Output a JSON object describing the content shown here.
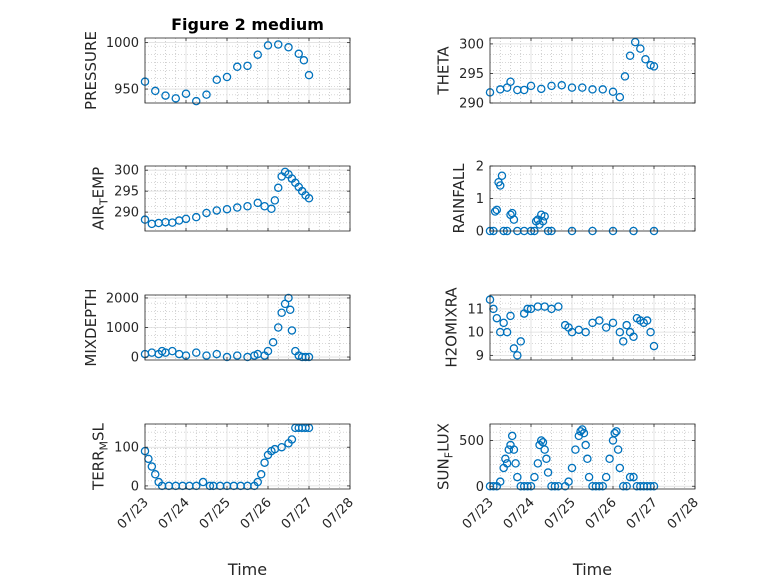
{
  "figure": {
    "title": "Figure 2 medium"
  },
  "colors": {
    "marker": "#0072BD",
    "axis": "#262626",
    "grid": "#b0b0b0",
    "background": "#ffffff"
  },
  "chart_data": [
    {
      "type": "scatter",
      "marker": "o",
      "grid": true,
      "grid_minor": true,
      "title": "Figure 2 medium",
      "ylabel": "PRESSURE",
      "xlabel": "",
      "xlim": [
        "07/23",
        "07/28"
      ],
      "ylim": [
        935,
        1005
      ],
      "xticks": [
        "07/23",
        "07/24",
        "07/25",
        "07/26",
        "07/27",
        "07/28"
      ],
      "show_xticklabels": false,
      "yticks": [
        950,
        1000
      ],
      "yticklabels": [
        "950",
        "1000"
      ],
      "series": [
        {
          "x_hours": [
            0,
            6,
            12,
            18,
            24,
            30,
            36,
            42,
            48,
            54,
            60,
            66,
            72,
            78,
            84,
            90,
            93,
            96
          ],
          "y": [
            958,
            948,
            943,
            940,
            945,
            937,
            944,
            960,
            963,
            974,
            975,
            987,
            997,
            998,
            995,
            988,
            981,
            965
          ]
        }
      ]
    },
    {
      "type": "scatter",
      "marker": "o",
      "grid": true,
      "grid_minor": true,
      "ylabel": "THETA",
      "xlabel": "",
      "xlim": [
        "07/23",
        "07/28"
      ],
      "ylim": [
        290,
        301
      ],
      "xticks": [
        "07/23",
        "07/24",
        "07/25",
        "07/26",
        "07/27",
        "07/28"
      ],
      "show_xticklabels": false,
      "yticks": [
        290,
        295,
        300
      ],
      "yticklabels": [
        "290",
        "295",
        "300"
      ],
      "series": [
        {
          "x_hours": [
            0,
            6,
            10,
            12,
            16,
            20,
            24,
            30,
            36,
            42,
            48,
            54,
            60,
            66,
            72,
            76,
            79,
            82,
            85,
            88,
            91,
            94,
            96
          ],
          "y": [
            291.8,
            292.3,
            292.6,
            293.6,
            292.2,
            292.2,
            292.9,
            292.4,
            292.9,
            293.0,
            292.6,
            292.6,
            292.3,
            292.3,
            291.9,
            291.0,
            294.5,
            298.0,
            300.3,
            299.2,
            297.4,
            296.4,
            296.2
          ]
        }
      ]
    },
    {
      "type": "scatter",
      "marker": "o",
      "grid": true,
      "grid_minor": true,
      "ylabel": "AIR_TEMP",
      "ylabel_sub": "T",
      "xlabel": "",
      "xlim": [
        "07/23",
        "07/28"
      ],
      "ylim": [
        285.5,
        301
      ],
      "xticks": [
        "07/23",
        "07/24",
        "07/25",
        "07/26",
        "07/27",
        "07/28"
      ],
      "show_xticklabels": false,
      "yticks": [
        290,
        295,
        300
      ],
      "yticklabels": [
        "290",
        "295",
        "300"
      ],
      "series": [
        {
          "x_hours": [
            0,
            4,
            8,
            12,
            16,
            20,
            24,
            30,
            36,
            42,
            48,
            54,
            60,
            66,
            70,
            74,
            76,
            78,
            80,
            82,
            84,
            86,
            88,
            90,
            92,
            94,
            96
          ],
          "y": [
            288.2,
            287.2,
            287.4,
            287.6,
            287.5,
            288.0,
            288.4,
            288.8,
            289.8,
            290.4,
            290.7,
            291.1,
            291.4,
            292.2,
            291.4,
            290.8,
            292.8,
            295.8,
            298.5,
            299.6,
            299.0,
            298.0,
            297.0,
            296.0,
            295.0,
            294.0,
            293.3
          ]
        }
      ]
    },
    {
      "type": "scatter",
      "marker": "o",
      "grid": true,
      "grid_minor": true,
      "ylabel": "RAINFALL",
      "xlabel": "",
      "xlim": [
        "07/23",
        "07/28"
      ],
      "ylim": [
        0,
        2
      ],
      "xticks": [
        "07/23",
        "07/24",
        "07/25",
        "07/26",
        "07/27",
        "07/28"
      ],
      "show_xticklabels": false,
      "yticks": [
        0,
        1,
        2
      ],
      "yticklabels": [
        "0",
        "1",
        "2"
      ],
      "series": [
        {
          "x_hours": [
            0,
            2,
            3,
            4,
            5,
            6,
            7,
            8,
            10,
            12,
            13,
            14,
            16,
            20,
            24,
            26,
            27,
            28,
            29,
            30,
            31,
            32,
            34,
            36,
            48,
            60,
            72,
            84,
            96
          ],
          "y": [
            0,
            0,
            0.6,
            0.65,
            1.5,
            1.4,
            1.7,
            0,
            0,
            0.5,
            0.55,
            0.35,
            0,
            0,
            0,
            0,
            0.3,
            0.35,
            0.2,
            0.5,
            0.3,
            0.45,
            0,
            0,
            0,
            0,
            0,
            0,
            0
          ]
        }
      ]
    },
    {
      "type": "scatter",
      "marker": "o",
      "grid": true,
      "grid_minor": true,
      "ylabel": "MIXDEPTH",
      "xlabel": "",
      "xlim": [
        "07/23",
        "07/28"
      ],
      "ylim": [
        -100,
        2100
      ],
      "xticks": [
        "07/23",
        "07/24",
        "07/25",
        "07/26",
        "07/27",
        "07/28"
      ],
      "show_xticklabels": false,
      "yticks": [
        0,
        1000,
        2000
      ],
      "yticklabels": [
        "0",
        "1000",
        "2000"
      ],
      "series": [
        {
          "x_hours": [
            0,
            4,
            8,
            10,
            12,
            16,
            20,
            24,
            30,
            36,
            42,
            48,
            54,
            60,
            64,
            66,
            70,
            72,
            75,
            78,
            80,
            82,
            84,
            85,
            86,
            88,
            90,
            92,
            94,
            96
          ],
          "y": [
            100,
            150,
            100,
            200,
            150,
            200,
            100,
            50,
            150,
            50,
            100,
            0,
            50,
            0,
            50,
            100,
            50,
            200,
            500,
            1000,
            1500,
            1800,
            2000,
            1600,
            900,
            200,
            50,
            0,
            0,
            0
          ]
        }
      ]
    },
    {
      "type": "scatter",
      "marker": "o",
      "grid": true,
      "grid_minor": true,
      "ylabel": "H2OMIXRA",
      "xlabel": "",
      "xlim": [
        "07/23",
        "07/28"
      ],
      "ylim": [
        8.8,
        11.6
      ],
      "xticks": [
        "07/23",
        "07/24",
        "07/25",
        "07/26",
        "07/27",
        "07/28"
      ],
      "show_xticklabels": false,
      "yticks": [
        9,
        10,
        11
      ],
      "yticklabels": [
        "9",
        "10",
        "11"
      ],
      "series": [
        {
          "x_hours": [
            0,
            2,
            4,
            6,
            8,
            10,
            12,
            14,
            16,
            18,
            20,
            22,
            24,
            28,
            32,
            36,
            40,
            44,
            46,
            48,
            52,
            56,
            60,
            64,
            68,
            72,
            76,
            78,
            80,
            82,
            84,
            86,
            88,
            90,
            92,
            94,
            96
          ],
          "y": [
            11.4,
            11.0,
            10.6,
            10.0,
            10.4,
            10.0,
            10.7,
            9.3,
            9.0,
            9.6,
            10.8,
            11.0,
            11.0,
            11.1,
            11.1,
            11.0,
            11.1,
            10.3,
            10.2,
            10.0,
            10.1,
            10.0,
            10.4,
            10.5,
            10.2,
            10.4,
            10.0,
            9.6,
            10.3,
            10.0,
            9.8,
            10.6,
            10.5,
            10.4,
            10.5,
            10.0,
            9.4
          ]
        }
      ]
    },
    {
      "type": "scatter",
      "marker": "o",
      "grid": true,
      "grid_minor": true,
      "ylabel": "TERR_MSL",
      "ylabel_sub": "M",
      "xlabel": "Time",
      "xlim": [
        "07/23",
        "07/28"
      ],
      "ylim": [
        -8,
        160
      ],
      "xticks": [
        "07/23",
        "07/24",
        "07/25",
        "07/26",
        "07/27",
        "07/28"
      ],
      "show_xticklabels": true,
      "yticks": [
        0,
        100
      ],
      "yticklabels": [
        "0",
        "100"
      ],
      "series": [
        {
          "x_hours": [
            0,
            2,
            4,
            6,
            8,
            10,
            14,
            18,
            22,
            26,
            30,
            34,
            38,
            40,
            44,
            48,
            52,
            56,
            60,
            64,
            66,
            68,
            70,
            72,
            74,
            76,
            80,
            84,
            86,
            88,
            90,
            92,
            94,
            96
          ],
          "y": [
            90,
            70,
            50,
            30,
            10,
            0,
            0,
            0,
            0,
            0,
            0,
            10,
            0,
            0,
            0,
            0,
            0,
            0,
            0,
            0,
            10,
            30,
            60,
            80,
            90,
            95,
            100,
            110,
            120,
            150,
            150,
            150,
            150,
            150
          ]
        }
      ]
    },
    {
      "type": "scatter",
      "marker": "o",
      "grid": true,
      "grid_minor": true,
      "ylabel": "SUN_FLUX",
      "ylabel_sub": "F",
      "xlabel": "Time",
      "xlim": [
        "07/23",
        "07/28"
      ],
      "ylim": [
        -30,
        680
      ],
      "xticks": [
        "07/23",
        "07/24",
        "07/25",
        "07/26",
        "07/27",
        "07/28"
      ],
      "show_xticklabels": true,
      "yticks": [
        0,
        500
      ],
      "yticklabels": [
        "0",
        "500"
      ],
      "series": [
        {
          "x_hours": [
            0,
            2,
            4,
            6,
            8,
            9,
            10,
            11,
            12,
            13,
            14,
            15,
            16,
            18,
            20,
            22,
            24,
            26,
            28,
            29,
            30,
            31,
            32,
            33,
            34,
            36,
            38,
            40,
            44,
            46,
            48,
            50,
            52,
            53,
            54,
            55,
            56,
            57,
            58,
            60,
            62,
            64,
            66,
            68,
            70,
            72,
            73,
            74,
            75,
            76,
            78,
            80,
            82,
            84,
            86,
            88,
            90,
            92,
            94,
            96
          ],
          "y": [
            0,
            0,
            0,
            50,
            200,
            300,
            250,
            400,
            450,
            550,
            400,
            250,
            100,
            0,
            0,
            0,
            0,
            100,
            250,
            450,
            500,
            480,
            400,
            300,
            150,
            0,
            0,
            0,
            0,
            50,
            200,
            400,
            550,
            600,
            620,
            580,
            450,
            300,
            100,
            0,
            0,
            0,
            0,
            100,
            300,
            500,
            580,
            600,
            400,
            200,
            0,
            0,
            100,
            100,
            0,
            0,
            0,
            0,
            0,
            0
          ]
        }
      ]
    }
  ]
}
